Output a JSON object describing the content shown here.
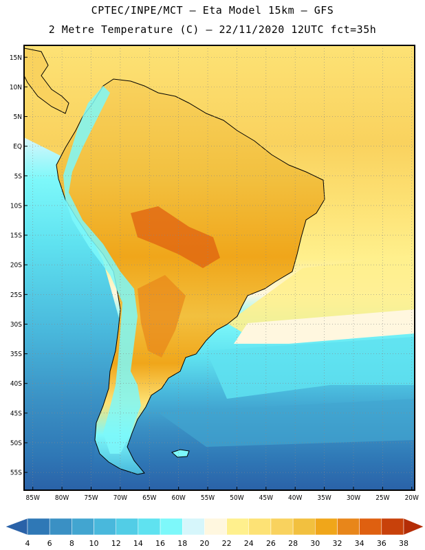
{
  "header": {
    "line1": "CPTEC/INPE/MCT –  Eta Model 15km – GFS",
    "line2": "2 Metre Temperature (C) – 22/11/2020 12UTC fct=35h"
  },
  "map": {
    "lat_labels": [
      "15N",
      "10N",
      "5N",
      "EQ",
      "5S",
      "10S",
      "15S",
      "20S",
      "25S",
      "30S",
      "35S",
      "40S",
      "45S",
      "50S",
      "55S"
    ],
    "lon_labels": [
      "85W",
      "80W",
      "75W",
      "70W",
      "65W",
      "60W",
      "55W",
      "50W",
      "45W",
      "40W",
      "35W",
      "30W",
      "25W",
      "20W"
    ],
    "bounds": {
      "lon_min": -86.5,
      "lon_max": -19.5,
      "lat_min": -58.0,
      "lat_max": 17.0
    }
  },
  "colorbar": {
    "ticks": [
      "4",
      "6",
      "8",
      "10",
      "12",
      "14",
      "16",
      "18",
      "20",
      "22",
      "24",
      "26",
      "28",
      "30",
      "32",
      "34",
      "36",
      "38"
    ],
    "colors": [
      "#2a62a8",
      "#2f78b6",
      "#3a90c4",
      "#42a5d0",
      "#49b8dc",
      "#52cde6",
      "#5fe2f0",
      "#7df8fa",
      "#d6f6fb",
      "#fff7df",
      "#fff08d",
      "#fde275",
      "#f9d25e",
      "#f2c03f",
      "#f0a61a",
      "#e8861a",
      "#df6010",
      "#c8410a",
      "#b42d06"
    ],
    "units": "C"
  }
}
